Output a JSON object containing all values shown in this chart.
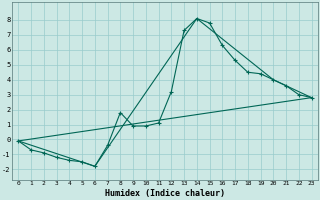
{
  "xlabel": "Humidex (Indice chaleur)",
  "ylabel": "",
  "background_color": "#cce8e4",
  "grid_color": "#99cccc",
  "line_color": "#006655",
  "xlim": [
    -0.5,
    23.5
  ],
  "ylim": [
    -2.7,
    9.2
  ],
  "xticks": [
    0,
    1,
    2,
    3,
    4,
    5,
    6,
    7,
    8,
    9,
    10,
    11,
    12,
    13,
    14,
    15,
    16,
    17,
    18,
    19,
    20,
    21,
    22,
    23
  ],
  "yticks": [
    -2,
    -1,
    0,
    1,
    2,
    3,
    4,
    5,
    6,
    7,
    8
  ],
  "line1_x": [
    0,
    1,
    2,
    3,
    4,
    5,
    6,
    7,
    8,
    9,
    10,
    11,
    12,
    13,
    14,
    15,
    16,
    17,
    18,
    19,
    20,
    21,
    22,
    23
  ],
  "line1_y": [
    -0.1,
    -0.7,
    -0.9,
    -1.2,
    -1.4,
    -1.5,
    -1.8,
    -0.4,
    1.8,
    0.9,
    0.9,
    1.1,
    3.2,
    7.3,
    8.1,
    7.8,
    6.3,
    5.3,
    4.5,
    4.4,
    4.0,
    3.6,
    3.0,
    2.8
  ],
  "line2_x": [
    0,
    6,
    14,
    20,
    23
  ],
  "line2_y": [
    -0.1,
    -1.8,
    8.1,
    4.0,
    2.8
  ],
  "line3_x": [
    0,
    23
  ],
  "line3_y": [
    -0.1,
    2.8
  ],
  "marker_size": 3,
  "linewidth": 0.8,
  "xlabel_fontsize": 6,
  "tick_fontsize": 4.5
}
